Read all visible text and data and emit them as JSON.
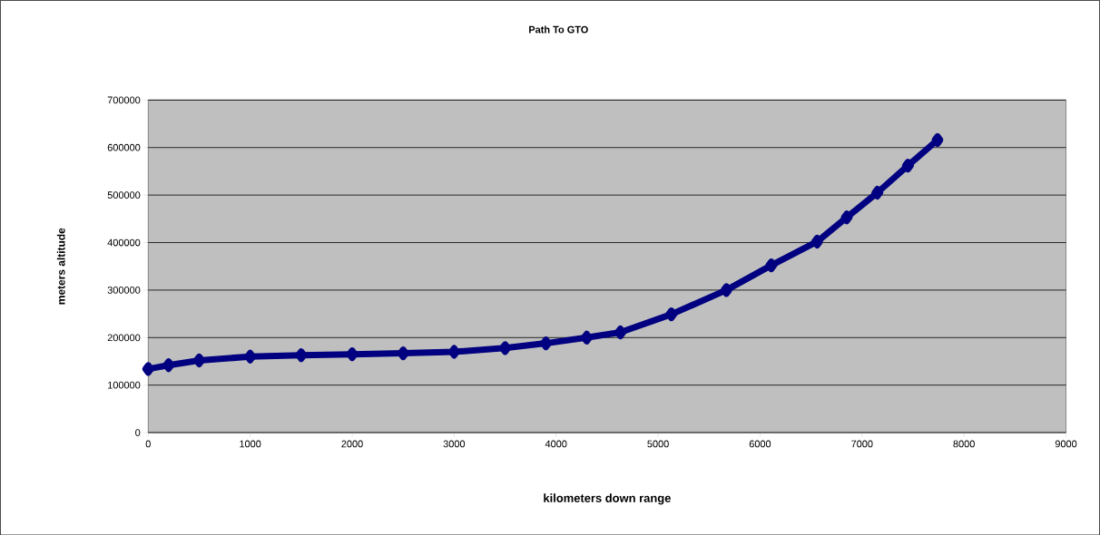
{
  "chart_data": {
    "type": "line",
    "title": "Path To GTO",
    "xlabel": "kilometers down range",
    "ylabel": "meters altitude",
    "x": [
      0,
      200,
      500,
      1000,
      1500,
      2000,
      2500,
      3000,
      3500,
      3900,
      4300,
      4630,
      5130,
      5670,
      6110,
      6560,
      6850,
      7150,
      7450,
      7740
    ],
    "series": [
      {
        "color": "#000080",
        "values": [
          134000,
          142000,
          152000,
          160000,
          163000,
          165000,
          167000,
          170000,
          178000,
          188000,
          200000,
          211000,
          249000,
          300000,
          352000,
          402000,
          453000,
          505000,
          562000,
          616000
        ]
      }
    ],
    "xlim": [
      0,
      9000
    ],
    "xticks": [
      0,
      1000,
      2000,
      3000,
      4000,
      5000,
      6000,
      7000,
      8000,
      9000
    ],
    "ylim": [
      0,
      700000
    ],
    "yticks": [
      0,
      100000,
      200000,
      300000,
      400000,
      500000,
      600000,
      700000
    ],
    "grid": "y",
    "marker": "diamond",
    "line_style": "solid"
  }
}
